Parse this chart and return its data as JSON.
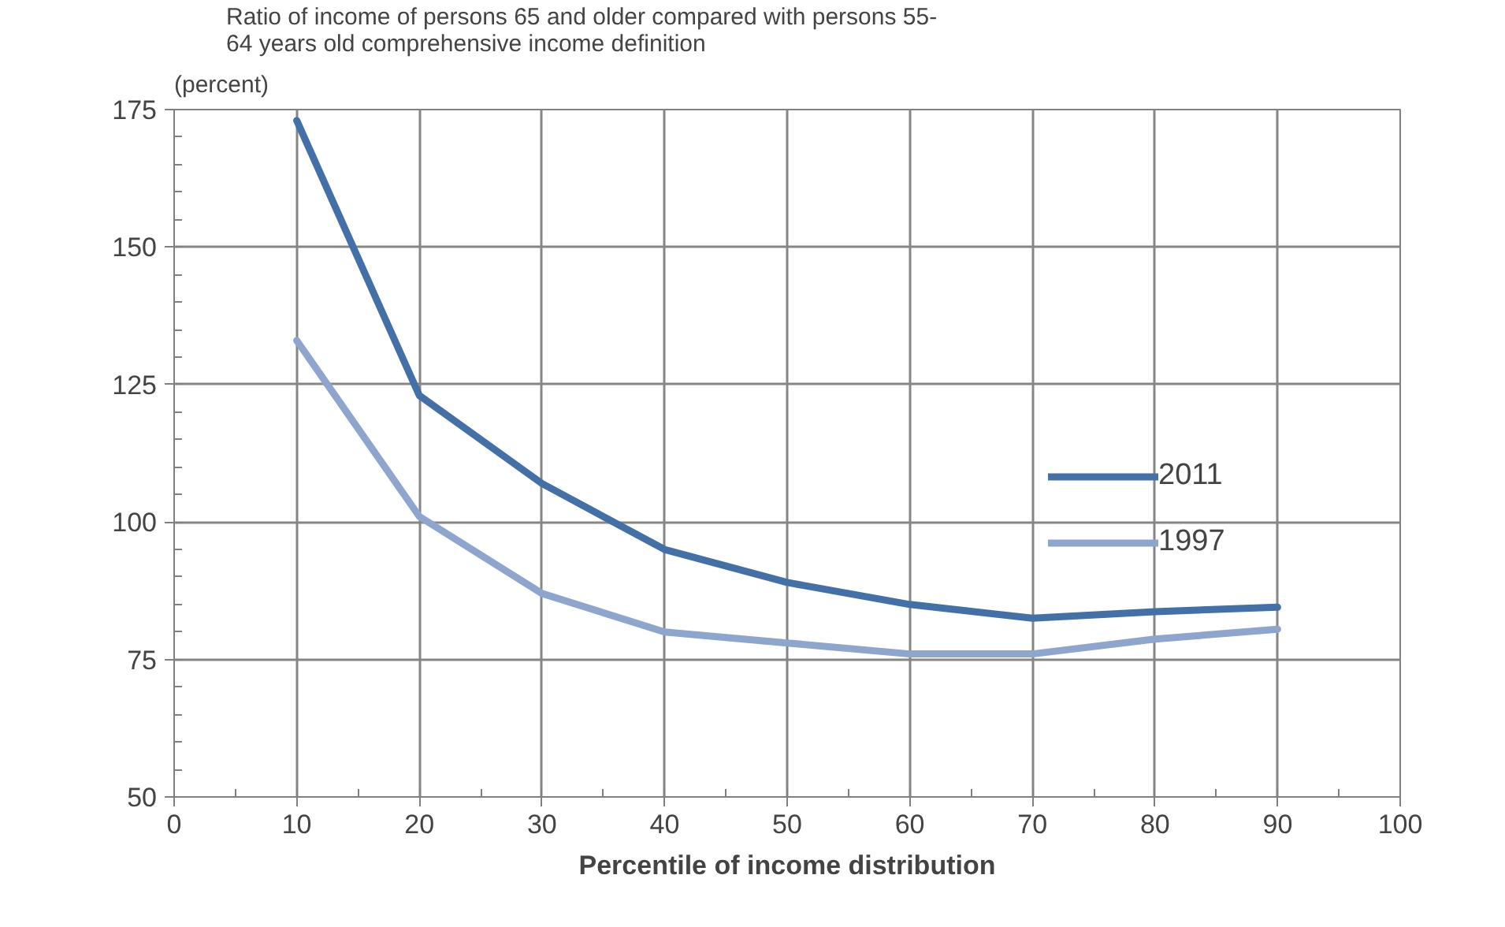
{
  "chart_data": {
    "type": "line",
    "title": "Ratio of  income of persons 65 and older compared with persons 55-\n64 years old comprehensive income definition",
    "ylabel": "(percent)",
    "xlabel": "Percentile of income distribution",
    "x": [
      10,
      20,
      30,
      40,
      50,
      60,
      70,
      80,
      90
    ],
    "series": [
      {
        "name": "2011",
        "color": "#4470a8",
        "values": [
          173,
          123,
          107,
          95,
          89,
          85,
          82.5,
          83.7,
          84.5
        ]
      },
      {
        "name": "1997",
        "color": "#8ea6cd",
        "values": [
          133,
          101,
          87,
          80,
          78,
          76,
          76,
          78.7,
          80.5
        ]
      }
    ],
    "xlim": [
      0,
      100
    ],
    "xticks": [
      0,
      10,
      20,
      30,
      40,
      50,
      60,
      70,
      80,
      90,
      100
    ],
    "ylim": [
      50,
      175
    ],
    "yticks": [
      50,
      75,
      100,
      125,
      150,
      175
    ],
    "grid": true,
    "legend": "right",
    "marker": "none",
    "line_style": "solid"
  }
}
